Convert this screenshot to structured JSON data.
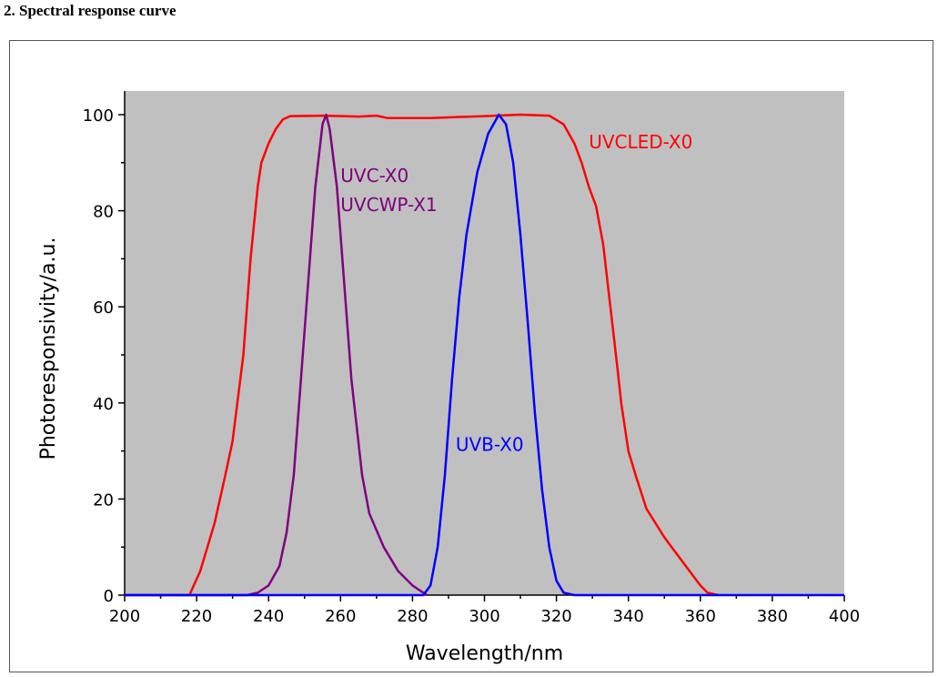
{
  "page_title": "2. Spectral response curve",
  "chart_data": {
    "type": "line",
    "title": "",
    "xlabel": "Wavelength/nm",
    "ylabel": "Photoresponsivity/a.u.",
    "xlim": [
      200,
      400
    ],
    "ylim": [
      0,
      105
    ],
    "xticks": [
      200,
      220,
      240,
      260,
      280,
      300,
      320,
      340,
      360,
      380,
      400
    ],
    "yticks": [
      0,
      20,
      40,
      60,
      80,
      100
    ],
    "background": "#c0c0c0",
    "grid": false,
    "series": [
      {
        "name": "UVCLED-X0",
        "color": "#ff0000",
        "labels": [
          "UVCLED-X0"
        ],
        "label_at": [
          329,
          93
        ],
        "points": [
          [
            200,
            0
          ],
          [
            218,
            0
          ],
          [
            221,
            5
          ],
          [
            225,
            15
          ],
          [
            228,
            25
          ],
          [
            230,
            32
          ],
          [
            233,
            50
          ],
          [
            235,
            70
          ],
          [
            237,
            85
          ],
          [
            238,
            90
          ],
          [
            240,
            94
          ],
          [
            242,
            97
          ],
          [
            244,
            99
          ],
          [
            246,
            99.7
          ],
          [
            255,
            99.8
          ],
          [
            265,
            99.6
          ],
          [
            270,
            99.8
          ],
          [
            273,
            99.3
          ],
          [
            285,
            99.3
          ],
          [
            300,
            99.7
          ],
          [
            310,
            100
          ],
          [
            318,
            99.8
          ],
          [
            322,
            98
          ],
          [
            325,
            94
          ],
          [
            327,
            90
          ],
          [
            329,
            85
          ],
          [
            331,
            81
          ],
          [
            333,
            73
          ],
          [
            335,
            60
          ],
          [
            337,
            47
          ],
          [
            338,
            40
          ],
          [
            340,
            30
          ],
          [
            342,
            25
          ],
          [
            345,
            18
          ],
          [
            350,
            12
          ],
          [
            355,
            7
          ],
          [
            360,
            2
          ],
          [
            362,
            0.5
          ],
          [
            365,
            0
          ]
        ]
      },
      {
        "name": "UVC-X0 / UVCWP-X1",
        "color": "#800080",
        "labels": [
          "UVC-X0",
          "UVCWP-X1"
        ],
        "label_at": [
          260,
          86
        ],
        "points": [
          [
            200,
            0
          ],
          [
            234,
            0
          ],
          [
            237,
            0.5
          ],
          [
            240,
            2
          ],
          [
            243,
            6
          ],
          [
            245,
            13
          ],
          [
            247,
            25
          ],
          [
            249,
            45
          ],
          [
            251,
            65
          ],
          [
            253,
            85
          ],
          [
            255,
            98
          ],
          [
            256,
            100
          ],
          [
            257,
            97
          ],
          [
            259,
            85
          ],
          [
            261,
            65
          ],
          [
            263,
            45
          ],
          [
            266,
            25
          ],
          [
            268,
            17
          ],
          [
            272,
            10
          ],
          [
            276,
            5
          ],
          [
            280,
            2
          ],
          [
            284,
            0
          ]
        ]
      },
      {
        "name": "UVB-X0",
        "color": "#0000ff",
        "labels": [
          "UVB-X0"
        ],
        "label_at": [
          292,
          30
        ],
        "points": [
          [
            200,
            0
          ],
          [
            283,
            0
          ],
          [
            285,
            2
          ],
          [
            287,
            10
          ],
          [
            289,
            25
          ],
          [
            291,
            45
          ],
          [
            293,
            62
          ],
          [
            295,
            75
          ],
          [
            298,
            88
          ],
          [
            301,
            96
          ],
          [
            304,
            100
          ],
          [
            306,
            98
          ],
          [
            308,
            90
          ],
          [
            310,
            75
          ],
          [
            312,
            57
          ],
          [
            314,
            38
          ],
          [
            316,
            22
          ],
          [
            318,
            10
          ],
          [
            320,
            3
          ],
          [
            322,
            0.5
          ],
          [
            325,
            0
          ],
          [
            400,
            0
          ]
        ]
      }
    ]
  }
}
